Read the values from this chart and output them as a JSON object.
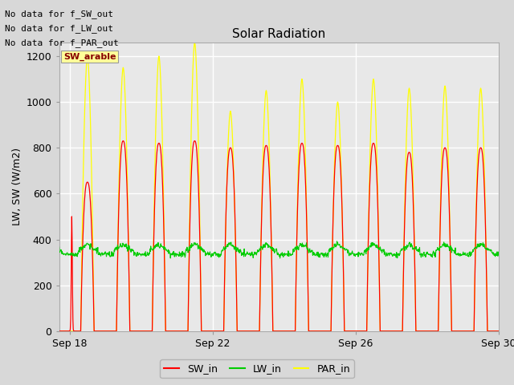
{
  "title": "Solar Radiation",
  "ylabel": "LW, SW (W/m2)",
  "xticks": [
    "Sep 18",
    "Sep 22",
    "Sep 26",
    "Sep 30"
  ],
  "ylim": [
    0,
    1260
  ],
  "yticks": [
    0,
    200,
    400,
    600,
    800,
    1000,
    1200
  ],
  "bg_color": "#d8d8d8",
  "plot_bg_color": "#e8e8e8",
  "grid_color": "#ffffff",
  "sw_color": "#ff0000",
  "lw_color": "#00cc00",
  "par_color": "#ffff00",
  "annotation_lines": [
    "No data for f_SW_out",
    "No data for f_LW_out",
    "No data for f_PAR_out"
  ],
  "legend_label": "SW_arable",
  "legend_bg": "#ffff99",
  "sw_peaks": [
    650,
    830,
    820,
    830,
    800,
    810,
    820,
    810,
    820,
    780,
    800,
    800
  ],
  "par_peaks": [
    1200,
    1150,
    1200,
    1260,
    960,
    1050,
    1100,
    1000,
    1100,
    1060,
    1070,
    1060
  ],
  "lw_base": 350
}
